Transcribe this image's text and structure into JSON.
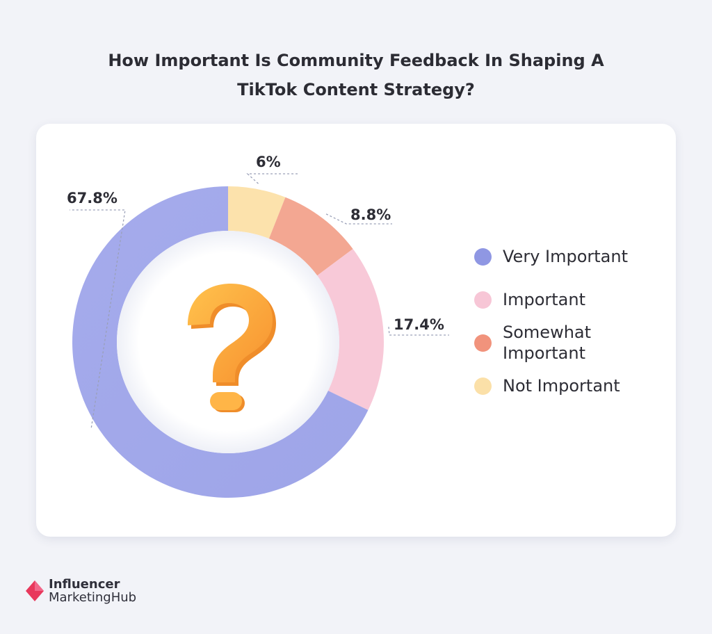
{
  "chart_data": {
    "type": "pie",
    "variant": "donut",
    "title": "How Important Is Community Feedback In Shaping A TikTok Content Strategy?",
    "categories": [
      "Very Important",
      "Important",
      "Somewhat Important",
      "Not Important"
    ],
    "values": [
      67.8,
      17.4,
      8.8,
      6
    ],
    "value_labels": [
      "67.8%",
      "17.4%",
      "8.8%",
      "6%"
    ],
    "colors": [
      "#a3aaeb",
      "#f8c9d8",
      "#f3a792",
      "#fce2ac"
    ],
    "legend_placement": "right",
    "center_icon": "question-mark-icon"
  },
  "legend": {
    "items": [
      {
        "label": "Very Important",
        "color": "#8f97e3"
      },
      {
        "label": "Important",
        "color": "#f7c6d6"
      },
      {
        "label": "Somewhat Important",
        "color": "#f1937c"
      },
      {
        "label": "Not Important",
        "color": "#fbe0a8"
      }
    ]
  },
  "brand": {
    "line1": "Influencer",
    "line2": "MarketingHub",
    "logo_icon": "diamond-logo-icon",
    "logo_color": "#e8385c"
  }
}
